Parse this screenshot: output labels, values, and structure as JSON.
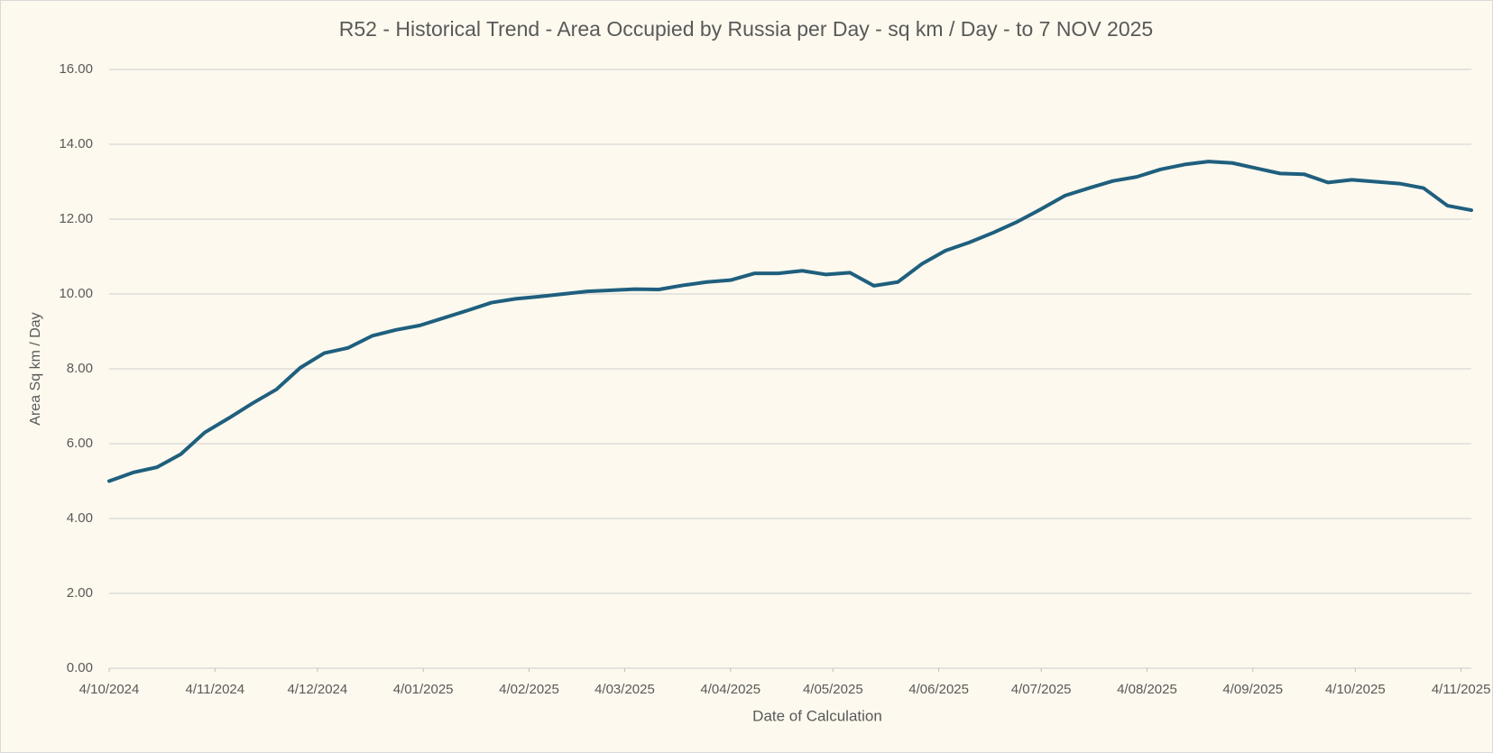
{
  "chart_data": {
    "type": "line",
    "title": "R52 - Historical Trend - Area Occupied by Russia per Day - sq km / Day - to 7 NOV 2025",
    "x_label": "Date of Calculation",
    "y_label": "Area Sq km / Day",
    "x": [
      "2024-10-04",
      "2024-10-11",
      "2024-10-18",
      "2024-10-25",
      "2024-11-01",
      "2024-11-08",
      "2024-11-15",
      "2024-11-22",
      "2024-11-29",
      "2024-12-06",
      "2024-12-13",
      "2024-12-20",
      "2024-12-27",
      "2025-01-03",
      "2025-01-10",
      "2025-01-17",
      "2025-01-24",
      "2025-01-31",
      "2025-02-07",
      "2025-02-14",
      "2025-02-21",
      "2025-02-28",
      "2025-03-07",
      "2025-03-14",
      "2025-03-21",
      "2025-03-28",
      "2025-04-04",
      "2025-04-11",
      "2025-04-18",
      "2025-04-25",
      "2025-05-02",
      "2025-05-09",
      "2025-05-16",
      "2025-05-23",
      "2025-05-30",
      "2025-06-06",
      "2025-06-13",
      "2025-06-20",
      "2025-06-27",
      "2025-07-04",
      "2025-07-11",
      "2025-07-18",
      "2025-07-25",
      "2025-08-01",
      "2025-08-08",
      "2025-08-15",
      "2025-08-22",
      "2025-08-29",
      "2025-09-05",
      "2025-09-12",
      "2025-09-19",
      "2025-09-26",
      "2025-10-03",
      "2025-10-10",
      "2025-10-17",
      "2025-10-24",
      "2025-10-31",
      "2025-11-07"
    ],
    "series": [
      {
        "color": "#1f5f7e",
        "values": [
          5.0,
          5.23,
          5.37,
          5.72,
          6.3,
          6.68,
          7.08,
          7.45,
          8.03,
          8.42,
          8.56,
          8.88,
          9.04,
          9.16,
          9.36,
          9.56,
          9.77,
          9.87,
          9.93,
          10.0,
          10.07,
          10.1,
          10.13,
          10.12,
          10.23,
          10.32,
          10.37,
          10.55,
          10.55,
          10.62,
          10.52,
          10.57,
          10.22,
          10.32,
          10.8,
          11.16,
          11.38,
          11.64,
          11.93,
          12.27,
          12.63,
          12.83,
          13.02,
          13.13,
          13.33,
          13.46,
          13.54,
          13.5,
          13.36,
          13.22,
          13.2,
          12.98,
          13.05,
          13.0,
          12.95,
          12.83,
          12.36,
          12.24
        ]
      }
    ],
    "xlim": [
      "2024-10-04",
      "2025-11-07"
    ],
    "xticks": [
      {
        "value": "2024-10-04",
        "label": "4/10/2024"
      },
      {
        "value": "2024-11-04",
        "label": "4/11/2024"
      },
      {
        "value": "2024-12-04",
        "label": "4/12/2024"
      },
      {
        "value": "2025-01-04",
        "label": "4/01/2025"
      },
      {
        "value": "2025-02-04",
        "label": "4/02/2025"
      },
      {
        "value": "2025-03-04",
        "label": "4/03/2025"
      },
      {
        "value": "2025-04-04",
        "label": "4/04/2025"
      },
      {
        "value": "2025-05-04",
        "label": "4/05/2025"
      },
      {
        "value": "2025-06-04",
        "label": "4/06/2025"
      },
      {
        "value": "2025-07-04",
        "label": "4/07/2025"
      },
      {
        "value": "2025-08-04",
        "label": "4/08/2025"
      },
      {
        "value": "2025-09-04",
        "label": "4/09/2025"
      },
      {
        "value": "2025-10-04",
        "label": "4/10/2025"
      },
      {
        "value": "2025-11-04",
        "label": "4/11/2025"
      }
    ],
    "ylim": [
      0,
      16
    ],
    "yticks": [
      {
        "value": 0,
        "label": "0.00"
      },
      {
        "value": 2,
        "label": "2.00"
      },
      {
        "value": 4,
        "label": "4.00"
      },
      {
        "value": 6,
        "label": "6.00"
      },
      {
        "value": 8,
        "label": "8.00"
      },
      {
        "value": 10,
        "label": "10.00"
      },
      {
        "value": 12,
        "label": "12.00"
      },
      {
        "value": 14,
        "label": "14.00"
      },
      {
        "value": 16,
        "label": "16.00"
      }
    ],
    "grid": true
  }
}
